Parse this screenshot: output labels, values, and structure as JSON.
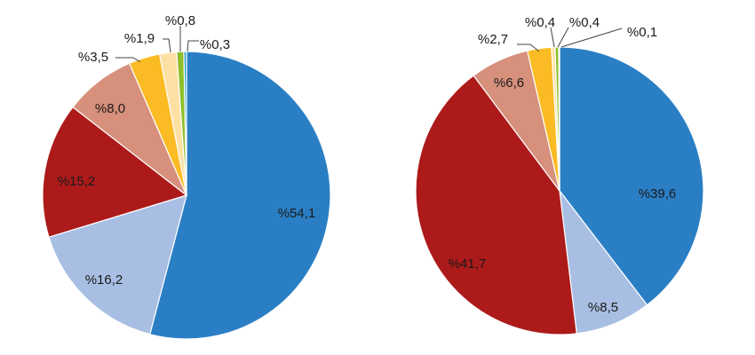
{
  "chart_data": [
    {
      "type": "pie",
      "label_format": "%{v}",
      "start_angle_deg": 0,
      "direction": "clockwise",
      "slices": [
        {
          "label": "%54,1",
          "value": 54.1,
          "color": "#2a7fc4"
        },
        {
          "label": "%16,2",
          "value": 16.2,
          "color": "#a8bfe3"
        },
        {
          "label": "%15,2",
          "value": 15.2,
          "color": "#ac1a1a"
        },
        {
          "label": "%8,0",
          "value": 8.0,
          "color": "#d6907c"
        },
        {
          "label": "%3,5",
          "value": 3.5,
          "color": "#fbbb24"
        },
        {
          "label": "%1,9",
          "value": 1.9,
          "color": "#fde0a4"
        },
        {
          "label": "%0,8",
          "value": 0.8,
          "color": "#8fbf2a"
        },
        {
          "label": "%0,3",
          "value": 0.3,
          "color": "#2a9fd0"
        }
      ]
    },
    {
      "type": "pie",
      "label_format": "%{v}",
      "start_angle_deg": 0,
      "direction": "clockwise",
      "slices": [
        {
          "label": "%39,6",
          "value": 39.6,
          "color": "#2a7fc4"
        },
        {
          "label": "%8,5",
          "value": 8.5,
          "color": "#a8bfe3"
        },
        {
          "label": "%41,7",
          "value": 41.7,
          "color": "#ac1a1a"
        },
        {
          "label": "%6,6",
          "value": 6.6,
          "color": "#d6907c"
        },
        {
          "label": "%2,7",
          "value": 2.7,
          "color": "#fbbb24"
        },
        {
          "label": "%0,4",
          "value": 0.4,
          "color": "#fde0a4"
        },
        {
          "label": "%0,4",
          "value": 0.4,
          "color": "#8fbf2a"
        },
        {
          "label": "%0,1",
          "value": 0.1,
          "color": "#2a9fd0"
        }
      ]
    }
  ]
}
